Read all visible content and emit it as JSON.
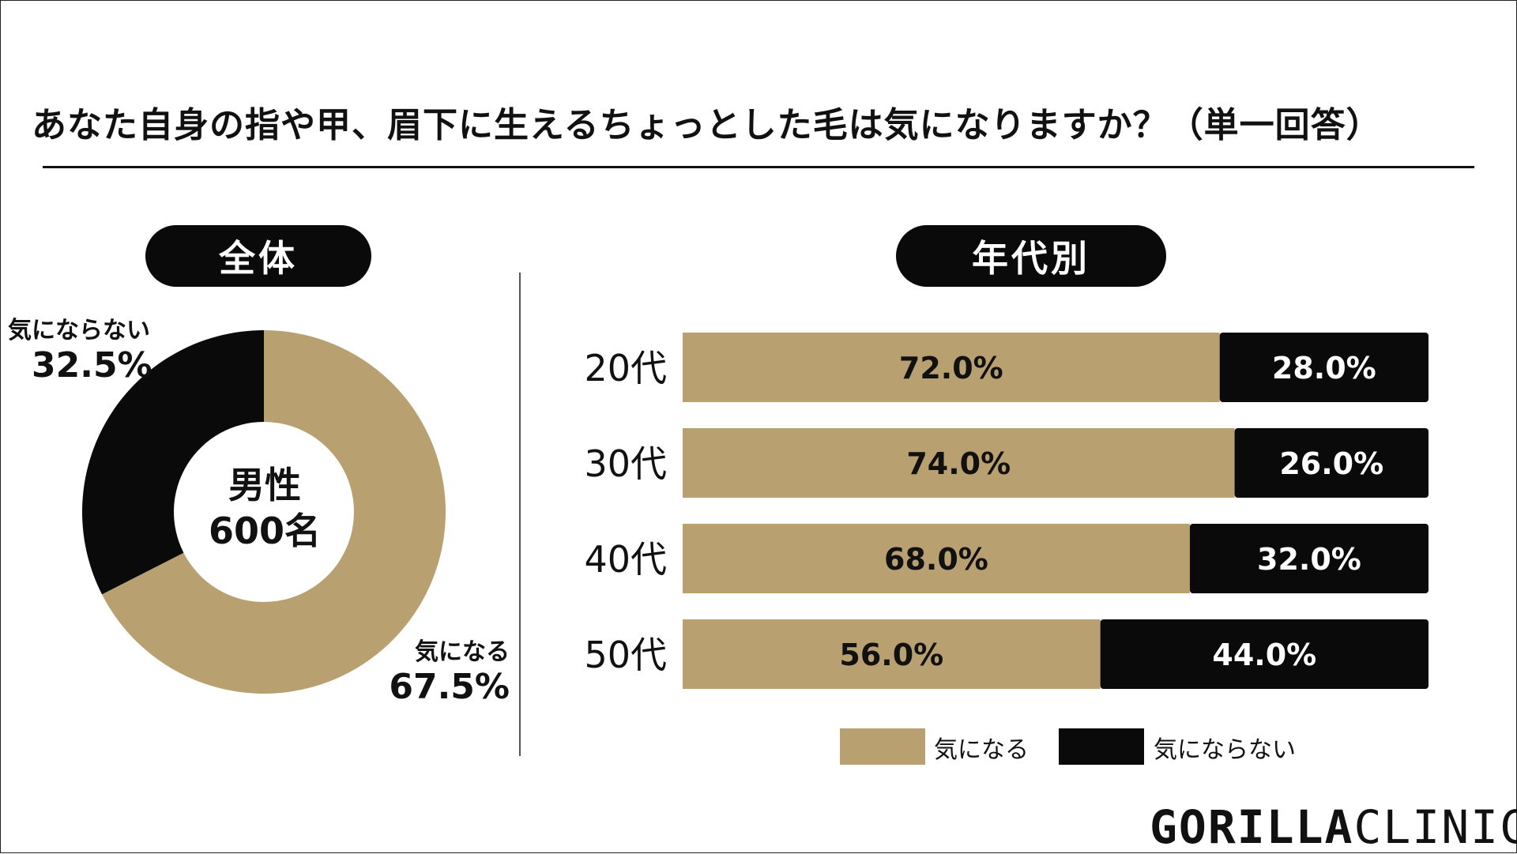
{
  "title": "あなた自身の指や甲、眉下に生えるちょっとした毛は気になりますか？（単一回答）",
  "colors": {
    "yes": "#b9a071",
    "no": "#0a0a0a"
  },
  "overall": {
    "pill_label": "全体",
    "center_line1": "男性",
    "center_line2": "600名"
  },
  "age": {
    "pill_label": "年代別"
  },
  "legend": {
    "yes": "気になる",
    "no": "気にならない"
  },
  "logo": {
    "bold": "GORILLA",
    "light": "CLINIC"
  },
  "chart_data": [
    {
      "type": "pie",
      "donut": true,
      "title": "全体",
      "slices": [
        {
          "label": "気になる",
          "value": 67.5,
          "value_label": "67.5%"
        },
        {
          "label": "気にならない",
          "value": 32.5,
          "value_label": "32.5%"
        }
      ]
    },
    {
      "type": "bar",
      "orientation": "horizontal",
      "stacked": true,
      "title": "年代別",
      "categories": [
        "20代",
        "30代",
        "40代",
        "50代"
      ],
      "series": [
        {
          "name": "気になる",
          "values": [
            72.0,
            74.0,
            68.0,
            56.0
          ],
          "labels": [
            "72.0%",
            "74.0%",
            "68.0%",
            "56.0%"
          ]
        },
        {
          "name": "気にならない",
          "values": [
            28.0,
            26.0,
            32.0,
            44.0
          ],
          "labels": [
            "28.0%",
            "26.0%",
            "32.0%",
            "44.0%"
          ]
        }
      ],
      "xlim": [
        0,
        100
      ],
      "legend": "bottom"
    }
  ]
}
